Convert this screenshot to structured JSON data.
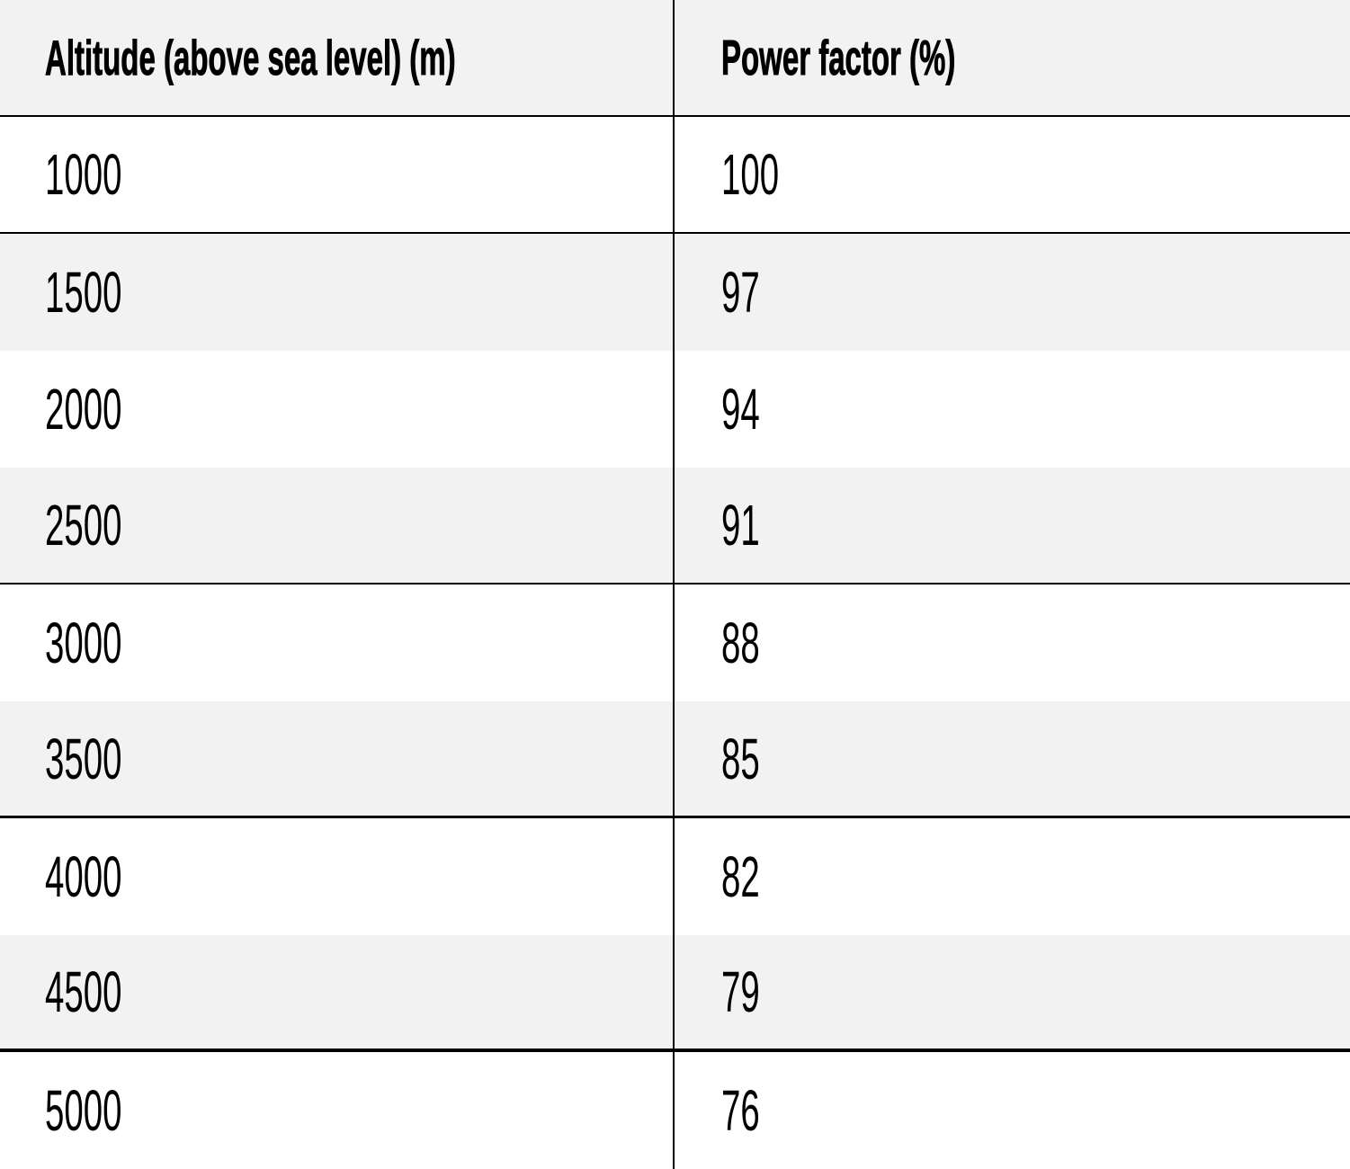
{
  "table": {
    "columns": [
      {
        "label": "Altitude (above sea level) (m)"
      },
      {
        "label": "Power factor (%)"
      }
    ],
    "rows": [
      {
        "altitude": "1000",
        "power_factor": "100"
      },
      {
        "altitude": "1500",
        "power_factor": "97"
      },
      {
        "altitude": "2000",
        "power_factor": "94"
      },
      {
        "altitude": "2500",
        "power_factor": "91"
      },
      {
        "altitude": "3000",
        "power_factor": "88"
      },
      {
        "altitude": "3500",
        "power_factor": "85"
      },
      {
        "altitude": "4000",
        "power_factor": "82"
      },
      {
        "altitude": "4500",
        "power_factor": "79"
      },
      {
        "altitude": "5000",
        "power_factor": "76"
      }
    ]
  },
  "colors": {
    "header_bg": "#f2f2f2",
    "alt_row_bg": "#f2f2f2",
    "row_bg": "#ffffff",
    "border": "#000000",
    "text": "#000000"
  },
  "chart_data": {
    "type": "table",
    "title": "",
    "categories": [
      "Altitude (above sea level) (m)",
      "Power factor (%)"
    ],
    "series": [
      {
        "name": "Altitude (above sea level) (m)",
        "values": [
          1000,
          1500,
          2000,
          2500,
          3000,
          3500,
          4000,
          4500,
          5000
        ]
      },
      {
        "name": "Power factor (%)",
        "values": [
          100,
          97,
          94,
          91,
          88,
          85,
          82,
          79,
          76
        ]
      }
    ]
  }
}
